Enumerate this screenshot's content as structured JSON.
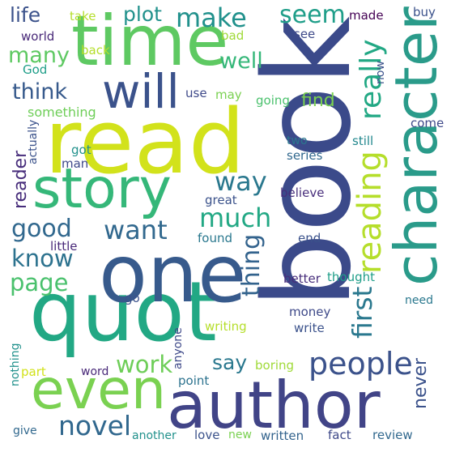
{
  "words": [
    {
      "text": "book",
      "color": "#3b4a8a"
    },
    {
      "text": "read",
      "color": "#d2e21b"
    },
    {
      "text": "quot",
      "color": "#22a884"
    },
    {
      "text": "one",
      "color": "#375a8c"
    },
    {
      "text": "time",
      "color": "#5ec962"
    },
    {
      "text": "author",
      "color": "#414487"
    },
    {
      "text": "character",
      "color": "#2a9b8a"
    },
    {
      "text": "story",
      "color": "#35b779"
    },
    {
      "text": "even",
      "color": "#7ad151"
    },
    {
      "text": "will",
      "color": "#3b528b"
    },
    {
      "text": "people",
      "color": "#3b528b"
    },
    {
      "text": "reading",
      "color": "#b5de2b"
    },
    {
      "text": "really",
      "color": "#22a884"
    },
    {
      "text": "first",
      "color": "#2a788e"
    },
    {
      "text": "novel",
      "color": "#31688e"
    },
    {
      "text": "much",
      "color": "#22a884"
    },
    {
      "text": "want",
      "color": "#31688e"
    },
    {
      "text": "make",
      "color": "#21918c"
    },
    {
      "text": "good",
      "color": "#31688e"
    },
    {
      "text": "seem",
      "color": "#1f9e89"
    },
    {
      "text": "way",
      "color": "#2a788e"
    },
    {
      "text": "page",
      "color": "#4ac16d"
    },
    {
      "text": "know",
      "color": "#2c728e"
    },
    {
      "text": "work",
      "color": "#6ece58"
    },
    {
      "text": "thing",
      "color": "#33638d"
    },
    {
      "text": "think",
      "color": "#375a8c"
    },
    {
      "text": "many",
      "color": "#5ec962"
    },
    {
      "text": "well",
      "color": "#35b779"
    },
    {
      "text": "plot",
      "color": "#21918c"
    },
    {
      "text": "say",
      "color": "#2a788e"
    },
    {
      "text": "never",
      "color": "#3b528b"
    },
    {
      "text": "life",
      "color": "#3b528b"
    },
    {
      "text": "reader",
      "color": "#472d7b"
    },
    {
      "text": "find",
      "color": "#7ad151"
    },
    {
      "text": "something",
      "color": "#6ece58"
    },
    {
      "text": "take",
      "color": "#b5de2b"
    },
    {
      "text": "made",
      "color": "#440154"
    },
    {
      "text": "buy",
      "color": "#3b528b"
    },
    {
      "text": "world",
      "color": "#482878"
    },
    {
      "text": "bad",
      "color": "#a0da39"
    },
    {
      "text": "see",
      "color": "#3e4989"
    },
    {
      "text": "back",
      "color": "#b5de2b"
    },
    {
      "text": "God",
      "color": "#1f9e89"
    },
    {
      "text": "now",
      "color": "#3b528b"
    },
    {
      "text": "use",
      "color": "#3e4989"
    },
    {
      "text": "may",
      "color": "#7ad151"
    },
    {
      "text": "going",
      "color": "#4ac16d"
    },
    {
      "text": "come",
      "color": "#3e4989"
    },
    {
      "text": "actually",
      "color": "#3b528b"
    },
    {
      "text": "two",
      "color": "#2a788e"
    },
    {
      "text": "still",
      "color": "#23888e"
    },
    {
      "text": "got",
      "color": "#21918c"
    },
    {
      "text": "series",
      "color": "#31688e"
    },
    {
      "text": "man",
      "color": "#3e4989"
    },
    {
      "text": "great",
      "color": "#3b528b"
    },
    {
      "text": "believe",
      "color": "#472d7b"
    },
    {
      "text": "little",
      "color": "#482878"
    },
    {
      "text": "found",
      "color": "#2a788e"
    },
    {
      "text": "end",
      "color": "#3b528b"
    },
    {
      "text": "better",
      "color": "#472d7b"
    },
    {
      "text": "thought",
      "color": "#1f9e89"
    },
    {
      "text": "need",
      "color": "#2a788e"
    },
    {
      "text": "go",
      "color": "#3b528b"
    },
    {
      "text": "money",
      "color": "#3e4989"
    },
    {
      "text": "write",
      "color": "#3b528b"
    },
    {
      "text": "writing",
      "color": "#b5de2b"
    },
    {
      "text": "anyone",
      "color": "#3e4989"
    },
    {
      "text": "nothing",
      "color": "#21918c"
    },
    {
      "text": "part",
      "color": "#d2e21b"
    },
    {
      "text": "word",
      "color": "#482878"
    },
    {
      "text": "point",
      "color": "#2c728e"
    },
    {
      "text": "boring",
      "color": "#a0da39"
    },
    {
      "text": "give",
      "color": "#31688e"
    },
    {
      "text": "love",
      "color": "#3b528b"
    },
    {
      "text": "another",
      "color": "#21918c"
    },
    {
      "text": "new",
      "color": "#7ad151"
    },
    {
      "text": "written",
      "color": "#33638d"
    },
    {
      "text": "fact",
      "color": "#3e4989"
    },
    {
      "text": "review",
      "color": "#31688e"
    }
  ]
}
